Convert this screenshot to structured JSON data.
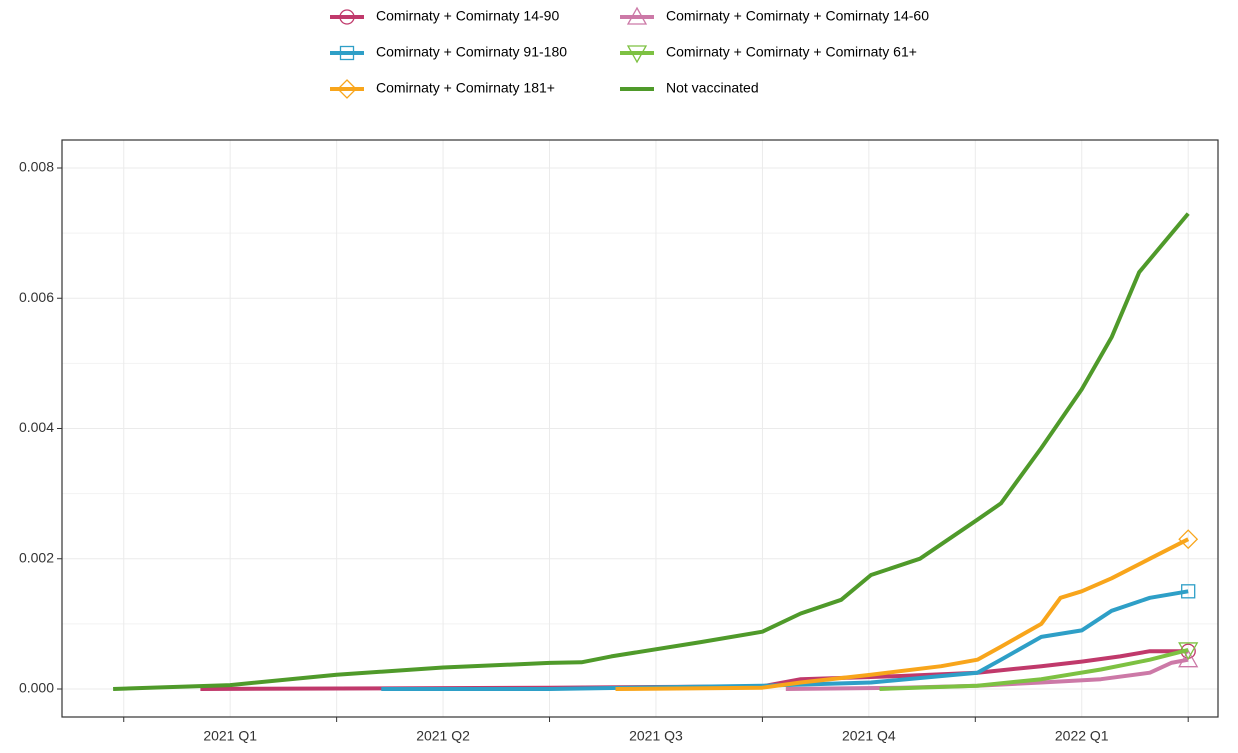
{
  "chart_data": {
    "type": "line",
    "xlim": [
      -0.29,
      5.14
    ],
    "xbreaks": [
      0,
      1,
      2,
      3,
      4,
      5
    ],
    "xticks": [
      {
        "value": 0.5,
        "label": "2021 Q1"
      },
      {
        "value": 1.5,
        "label": "2021 Q2"
      },
      {
        "value": 2.5,
        "label": "2021 Q3"
      },
      {
        "value": 3.5,
        "label": "2021 Q4"
      },
      {
        "value": 4.5,
        "label": "2022 Q1"
      }
    ],
    "ylim": [
      -0.00043,
      0.00843
    ],
    "yticks": [
      {
        "value": 0,
        "label": "0.000"
      },
      {
        "value": 0.002,
        "label": "0.002"
      },
      {
        "value": 0.004,
        "label": "0.004"
      },
      {
        "value": 0.006,
        "label": "0.006"
      },
      {
        "value": 0.008,
        "label": "0.008"
      }
    ],
    "grid": true,
    "legend": "top",
    "series": [
      {
        "name": "Comirnaty + Comirnaty 14-90",
        "color": "#c0396b",
        "marker": "circle",
        "x": [
          0.36,
          2.0,
          3.0,
          3.18,
          3.65,
          4.01,
          4.31,
          4.5,
          4.68,
          4.82,
          5.0
        ],
        "values": [
          0,
          2e-05,
          4e-05,
          0.00015,
          0.0002,
          0.00025,
          0.00035,
          0.00042,
          0.0005,
          0.00058,
          0.00058
        ]
      },
      {
        "name": "Comirnaty + Comirnaty 91-180",
        "color": "#2e9fc7",
        "marker": "square",
        "x": [
          1.21,
          2.0,
          3.0,
          3.51,
          4.01,
          4.12,
          4.31,
          4.5,
          4.64,
          4.82,
          5.0
        ],
        "values": [
          0,
          0,
          5e-05,
          0.0001,
          0.00025,
          0.00045,
          0.0008,
          0.0009,
          0.0012,
          0.0014,
          0.0015
        ]
      },
      {
        "name": "Comirnaty + Comirnaty 181+",
        "color": "#f8a51b",
        "marker": "diamond",
        "x": [
          2.31,
          3.0,
          3.18,
          3.51,
          3.84,
          4.01,
          4.12,
          4.31,
          4.4,
          4.5,
          4.64,
          4.82,
          5.0
        ],
        "values": [
          0,
          2e-05,
          0.0001,
          0.00022,
          0.00035,
          0.00045,
          0.00065,
          0.001,
          0.0014,
          0.0015,
          0.0017,
          0.002,
          0.0023
        ]
      },
      {
        "name": "Comirnaty + Comirnaty + Comirnaty 14-60",
        "color": "#cc79a7",
        "marker": "triangle",
        "x": [
          3.11,
          3.65,
          4.01,
          4.31,
          4.59,
          4.82,
          4.92,
          5.0
        ],
        "values": [
          0,
          2e-05,
          5e-05,
          0.0001,
          0.00015,
          0.00025,
          0.0004,
          0.00045
        ]
      },
      {
        "name": "Comirnaty + Comirnaty + Comirnaty 61+",
        "color": "#7dc142",
        "marker": "triangle-down",
        "x": [
          3.55,
          4.01,
          4.31,
          4.59,
          4.82,
          5.0
        ],
        "values": [
          0,
          5e-05,
          0.00015,
          0.0003,
          0.00045,
          0.0006
        ]
      },
      {
        "name": "Not vaccinated",
        "color": "#4f9a2a",
        "x": [
          -0.05,
          0.5,
          1.0,
          1.5,
          2.0,
          2.15,
          2.29,
          2.71,
          3.0,
          3.18,
          3.37,
          3.51,
          3.74,
          4.01,
          4.12,
          4.31,
          4.5,
          4.64,
          4.77,
          5.0
        ],
        "values": [
          0,
          6e-05,
          0.00022,
          0.00033,
          0.0004,
          0.00041,
          0.0005,
          0.00072,
          0.00088,
          0.00116,
          0.00137,
          0.00175,
          0.002,
          0.0026,
          0.00285,
          0.0037,
          0.0046,
          0.0054,
          0.0064,
          0.0073
        ]
      }
    ]
  }
}
